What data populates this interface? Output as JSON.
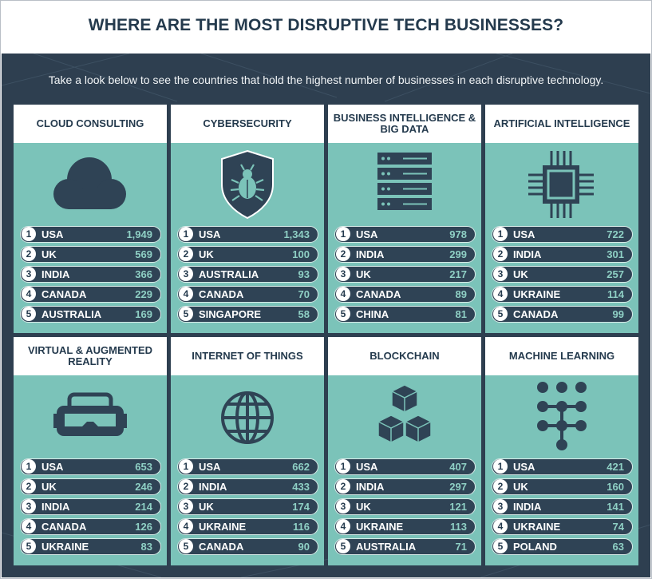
{
  "title": "WHERE ARE THE MOST DISRUPTIVE TECH BUSINESSES?",
  "subtitle": "Take a look below to see the countries that hold the highest number of businesses in each disruptive technology.",
  "colors": {
    "header_text": "#243a4d",
    "background": "#2e3f50",
    "card": "#7bc3b9",
    "pill": "#2f4355",
    "value_text": "#8fd0c5"
  },
  "cards": [
    {
      "title": "CLOUD CONSULTING",
      "icon": "cloud-icon",
      "rows": [
        {
          "rank": "1",
          "country": "USA",
          "value": "1,949"
        },
        {
          "rank": "2",
          "country": "UK",
          "value": "569"
        },
        {
          "rank": "3",
          "country": "INDIA",
          "value": "366"
        },
        {
          "rank": "4",
          "country": "CANADA",
          "value": "229"
        },
        {
          "rank": "5",
          "country": "AUSTRALIA",
          "value": "169"
        }
      ]
    },
    {
      "title": "CYBERSECURITY",
      "icon": "shield-bug-icon",
      "rows": [
        {
          "rank": "1",
          "country": "USA",
          "value": "1,343"
        },
        {
          "rank": "2",
          "country": "UK",
          "value": "100"
        },
        {
          "rank": "3",
          "country": "AUSTRALIA",
          "value": "93"
        },
        {
          "rank": "4",
          "country": "CANADA",
          "value": "70"
        },
        {
          "rank": "5",
          "country": "SINGAPORE",
          "value": "58"
        }
      ]
    },
    {
      "title": "BUSINESS INTELLIGENCE & BIG DATA",
      "icon": "server-stack-icon",
      "rows": [
        {
          "rank": "1",
          "country": "USA",
          "value": "978"
        },
        {
          "rank": "2",
          "country": "INDIA",
          "value": "299"
        },
        {
          "rank": "3",
          "country": "UK",
          "value": "217"
        },
        {
          "rank": "4",
          "country": "CANADA",
          "value": "89"
        },
        {
          "rank": "5",
          "country": "CHINA",
          "value": "81"
        }
      ]
    },
    {
      "title": "ARTIFICIAL INTELLIGENCE",
      "icon": "chip-icon",
      "rows": [
        {
          "rank": "1",
          "country": "USA",
          "value": "722"
        },
        {
          "rank": "2",
          "country": "INDIA",
          "value": "301"
        },
        {
          "rank": "3",
          "country": "UK",
          "value": "257"
        },
        {
          "rank": "4",
          "country": "UKRAINE",
          "value": "114"
        },
        {
          "rank": "5",
          "country": "CANADA",
          "value": "99"
        }
      ]
    },
    {
      "title": "VIRTUAL & AUGMENTED REALITY",
      "icon": "vr-headset-icon",
      "rows": [
        {
          "rank": "1",
          "country": "USA",
          "value": "653"
        },
        {
          "rank": "2",
          "country": "UK",
          "value": "246"
        },
        {
          "rank": "3",
          "country": "INDIA",
          "value": "214"
        },
        {
          "rank": "4",
          "country": "CANADA",
          "value": "126"
        },
        {
          "rank": "5",
          "country": "UKRAINE",
          "value": "83"
        }
      ]
    },
    {
      "title": "INTERNET OF THINGS",
      "icon": "globe-icon",
      "rows": [
        {
          "rank": "1",
          "country": "USA",
          "value": "662"
        },
        {
          "rank": "2",
          "country": "INDIA",
          "value": "433"
        },
        {
          "rank": "3",
          "country": "UK",
          "value": "174"
        },
        {
          "rank": "4",
          "country": "UKRAINE",
          "value": "116"
        },
        {
          "rank": "5",
          "country": "CANADA",
          "value": "90"
        }
      ]
    },
    {
      "title": "BLOCKCHAIN",
      "icon": "cubes-icon",
      "rows": [
        {
          "rank": "1",
          "country": "USA",
          "value": "407"
        },
        {
          "rank": "2",
          "country": "INDIA",
          "value": "297"
        },
        {
          "rank": "3",
          "country": "UK",
          "value": "121"
        },
        {
          "rank": "4",
          "country": "UKRAINE",
          "value": "113"
        },
        {
          "rank": "5",
          "country": "AUSTRALIA",
          "value": "71"
        }
      ]
    },
    {
      "title": "MACHINE LEARNING",
      "icon": "node-network-icon",
      "rows": [
        {
          "rank": "1",
          "country": "USA",
          "value": "421"
        },
        {
          "rank": "2",
          "country": "UK",
          "value": "160"
        },
        {
          "rank": "3",
          "country": "INDIA",
          "value": "141"
        },
        {
          "rank": "4",
          "country": "UKRAINE",
          "value": "74"
        },
        {
          "rank": "5",
          "country": "POLAND",
          "value": "63"
        }
      ]
    }
  ]
}
